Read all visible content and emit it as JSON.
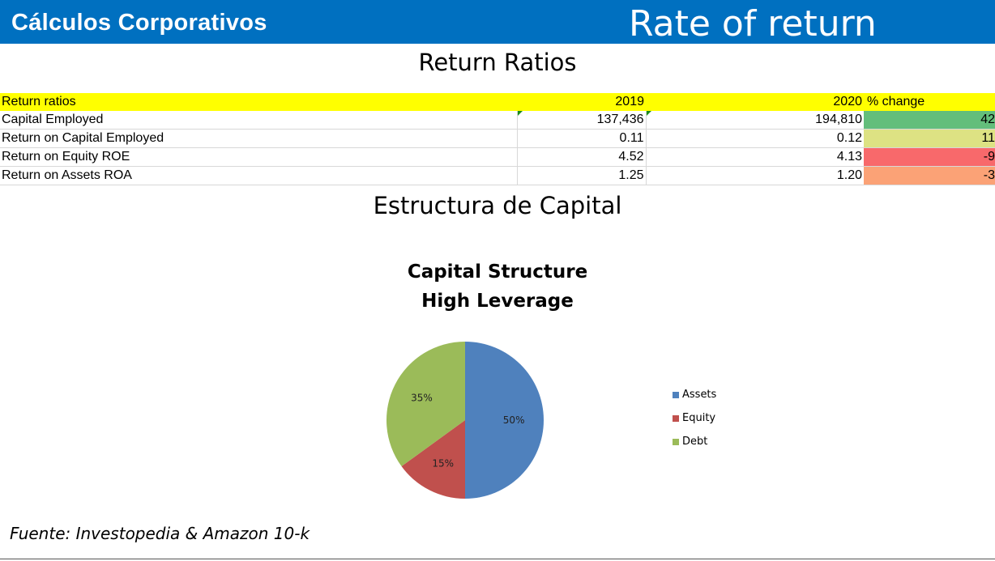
{
  "header": {
    "brand": "Cálculos Corporativos",
    "title": "Rate of return"
  },
  "section1_title": "Return Ratios",
  "table": {
    "headers": [
      "Return ratios",
      "2019",
      "2020",
      "% change"
    ],
    "rows": [
      {
        "label": "Capital Employed",
        "y2019": "137,436",
        "y2020": "194,810",
        "pct": "42",
        "color": "#63be7b"
      },
      {
        "label": "Return on Capital Employed",
        "y2019": "0.11",
        "y2020": "0.12",
        "pct": "11",
        "color": "#dde283"
      },
      {
        "label": "Return on Equity ROE",
        "y2019": "4.52",
        "y2020": "4.13",
        "pct": "-9",
        "color": "#f8696b"
      },
      {
        "label": "Return on Assets ROA",
        "y2019": "1.25",
        "y2020": "1.20",
        "pct": "-3",
        "color": "#fba276"
      }
    ]
  },
  "section2_title": "Estructura de Capital",
  "chart_data": {
    "type": "pie",
    "title": "Capital Structure",
    "subtitle": "High Leverage",
    "categories": [
      "Assets",
      "Equity",
      "Debt"
    ],
    "values": [
      50,
      15,
      35
    ],
    "labels": [
      "50%",
      "15%",
      "35%"
    ],
    "colors": [
      "#4f81bd",
      "#c0504d",
      "#9bbb59"
    ],
    "legend": "right"
  },
  "footer": "Fuente: Investopedia & Amazon 10-k"
}
